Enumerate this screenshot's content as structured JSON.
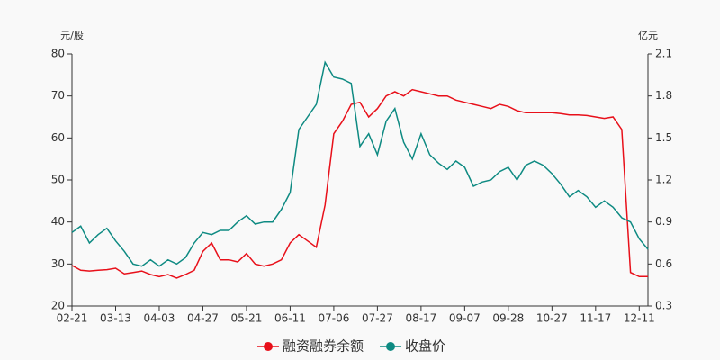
{
  "chart_data": {
    "type": "line",
    "y_label": "元/股",
    "y2_label": "亿元",
    "categories": [
      "02-21",
      null,
      null,
      null,
      null,
      "03-13",
      null,
      null,
      null,
      null,
      "04-03",
      null,
      null,
      null,
      null,
      "04-27",
      null,
      null,
      null,
      null,
      "05-21",
      null,
      null,
      null,
      null,
      "06-11",
      null,
      null,
      null,
      null,
      "07-06",
      null,
      null,
      null,
      null,
      "07-27",
      null,
      null,
      null,
      null,
      "08-17",
      null,
      null,
      null,
      null,
      "09-07",
      null,
      null,
      null,
      null,
      "09-28",
      null,
      null,
      null,
      null,
      "10-27",
      null,
      null,
      null,
      null,
      "11-17",
      null,
      null,
      null,
      null,
      "12-11",
      null
    ],
    "series": [
      {
        "name": "融资融券余额",
        "color": "#e8101a",
        "axis": "y2",
        "values": [
          0.59,
          0.555,
          0.55,
          0.555,
          0.56,
          0.57,
          0.53,
          0.54,
          0.55,
          0.525,
          0.51,
          0.525,
          0.5,
          0.525,
          0.555,
          0.69,
          0.75,
          0.63,
          0.63,
          0.615,
          0.675,
          0.6,
          0.585,
          0.6,
          0.63,
          0.75,
          0.81,
          0.765,
          0.72,
          1.02,
          1.53,
          1.62,
          1.74,
          1.755,
          1.65,
          1.71,
          1.8,
          1.83,
          1.8,
          1.845,
          1.83,
          1.815,
          1.8,
          1.8,
          1.77,
          1.755,
          1.74,
          1.725,
          1.71,
          1.74,
          1.725,
          1.695,
          1.68,
          1.68,
          1.68,
          1.68,
          1.674,
          1.665,
          1.665,
          1.66,
          1.65,
          1.64,
          1.65,
          1.56,
          0.54,
          0.51,
          0.51
        ]
      },
      {
        "name": "收盘价",
        "color": "#0e8a82",
        "values": [
          37.5,
          39,
          35,
          37,
          38.5,
          35.5,
          33,
          30,
          29.5,
          31,
          29.5,
          31,
          30,
          31.5,
          35,
          37.5,
          37,
          38,
          38,
          40,
          41.5,
          39.5,
          40,
          40,
          43,
          47,
          62,
          65,
          68,
          78,
          74.5,
          74,
          73,
          58,
          61,
          56,
          64,
          67,
          59,
          55,
          61,
          56,
          54,
          52.5,
          54.5,
          53,
          48.5,
          49.5,
          50,
          52,
          53,
          50,
          53.5,
          54.5,
          53.5,
          51.5,
          49,
          46,
          47.5,
          46,
          43.5,
          45,
          43.5,
          41,
          40,
          36,
          33.5
        ]
      }
    ],
    "ylim": [
      20,
      80
    ],
    "yticks": [
      20,
      30,
      40,
      50,
      60,
      70,
      80
    ],
    "y2lim": [
      0.3,
      2.1
    ],
    "y2ticks": [
      0.3,
      0.6,
      0.9,
      1.2,
      1.5,
      1.8,
      2.1
    ],
    "grid": false
  }
}
